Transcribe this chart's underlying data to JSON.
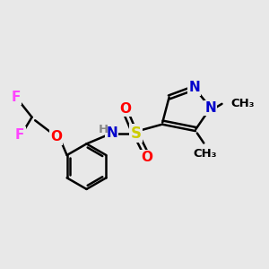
{
  "background_color": "#e8e8e8",
  "bond_color": "#000000",
  "atom_colors": {
    "N": "#0000cc",
    "O": "#ff0000",
    "S": "#cccc00",
    "F": "#ff44ff",
    "H": "#888888",
    "C": "#000000"
  },
  "font_size": 11
}
